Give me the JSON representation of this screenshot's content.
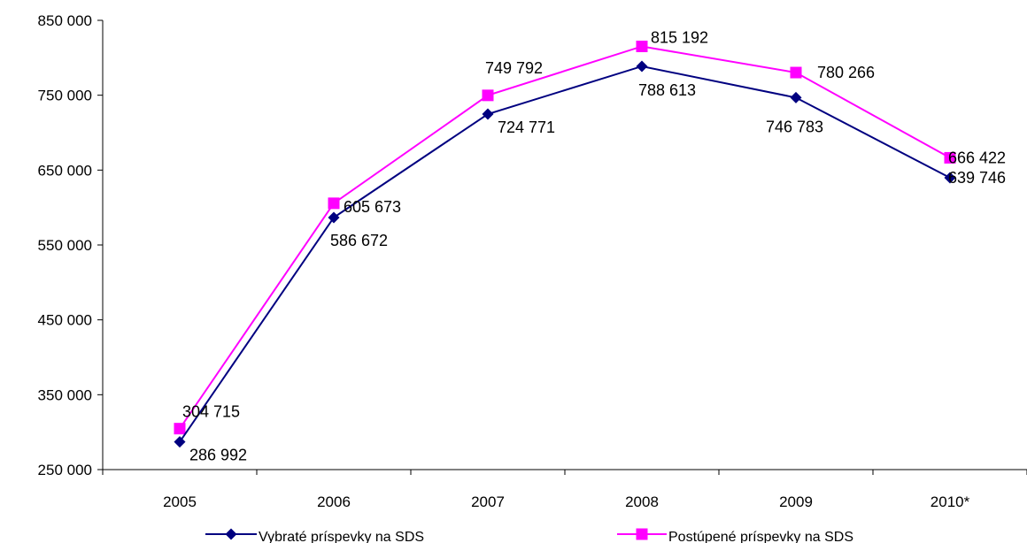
{
  "chart_data": {
    "type": "line",
    "categories": [
      "2005",
      "2006",
      "2007",
      "2008",
      "2009",
      "2010*"
    ],
    "ylim": [
      250000,
      850000
    ],
    "yticks": [
      "250 000",
      "350 000",
      "450 000",
      "550 000",
      "650 000",
      "750 000",
      "850 000"
    ],
    "ytick_values": [
      250000,
      350000,
      450000,
      550000,
      650000,
      750000,
      850000
    ],
    "grid": false,
    "legend_position": "bottom",
    "series": [
      {
        "name": "Vybraté príspevky na SDS",
        "values": [
          286992,
          586672,
          724771,
          788613,
          746783,
          639746
        ],
        "labels": [
          "286 992",
          "586 672",
          "724 771",
          "788 613",
          "746 783",
          "639 746"
        ],
        "color": "#000080",
        "marker": "diamond"
      },
      {
        "name": "Postúpené príspevky na SDS",
        "values": [
          304715,
          605673,
          749792,
          815192,
          780266,
          666422
        ],
        "labels": [
          "304 715",
          "605 673",
          "749 792",
          "815 192",
          "780 266",
          "666 422"
        ],
        "color": "#ff00ff",
        "marker": "square"
      }
    ]
  }
}
